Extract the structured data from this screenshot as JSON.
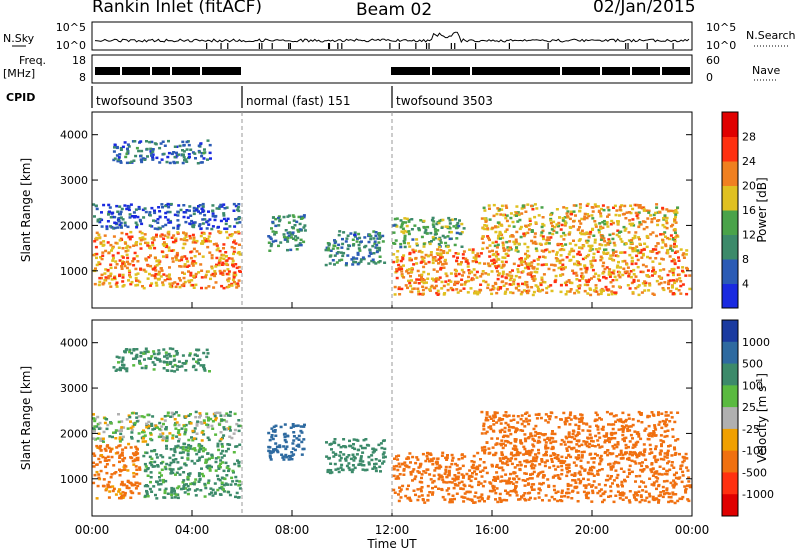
{
  "header": {
    "title": "Rankin Inlet (fitACF)",
    "beam": "Beam 02",
    "date": "02/Jan/2015"
  },
  "noise_panel": {
    "left_label": "N.Sky",
    "right_label": "N.Search",
    "left_ticks": [
      "10^5",
      "10^0"
    ],
    "right_ticks": [
      "10^5",
      "10^0"
    ]
  },
  "freq_panel": {
    "left_label_1": "Freq.",
    "left_label_2": "[MHz]",
    "right_label": "Nave",
    "left_ticks": [
      "18",
      "8"
    ],
    "right_ticks": [
      "60",
      "0"
    ]
  },
  "cpid": {
    "label": "CPID",
    "segments": [
      {
        "name": "twofsound 3503",
        "start": 0,
        "end": 6
      },
      {
        "name": "normal (fast) 151",
        "start": 6,
        "end": 12
      },
      {
        "name": "twofsound 3503",
        "start": 12,
        "end": 24
      }
    ]
  },
  "colors": {
    "power_scale": [
      "#1a2ae0",
      "#2b5bb5",
      "#3c8a6a",
      "#4aa34a",
      "#e0c020",
      "#f08020",
      "#ff3010",
      "#e00000"
    ],
    "velocity_scale": [
      "#1a3aa0",
      "#2e6aa0",
      "#3c8a6a",
      "#5aba40",
      "#b0b0b0",
      "#f0a000",
      "#f07010",
      "#ff3010",
      "#e00000"
    ]
  },
  "chart_data": [
    {
      "type": "heatmap",
      "title": "Power",
      "xlabel": "Time UT",
      "ylabel": "Slant Range [km]",
      "xlim": [
        0,
        24
      ],
      "ylim": [
        180,
        4500
      ],
      "x_ticks": [
        "00:00",
        "04:00",
        "08:00",
        "12:00",
        "16:00",
        "20:00",
        "00:00"
      ],
      "y_ticks": [
        1000,
        2000,
        3000,
        4000
      ],
      "colorbar": {
        "label": "Power [dB]",
        "ticks": [
          4,
          8,
          12,
          16,
          20,
          24,
          28
        ],
        "range": [
          0,
          32
        ]
      },
      "echo_regions": [
        {
          "start": 0.0,
          "end": 6.0,
          "range_min": 600,
          "range_max": 1900,
          "level": 28
        },
        {
          "start": 0.0,
          "end": 6.0,
          "range_min": 1900,
          "range_max": 2500,
          "level": 10
        },
        {
          "start": 0.8,
          "end": 4.8,
          "range_min": 3350,
          "range_max": 3900,
          "level": 12
        },
        {
          "start": 7.0,
          "end": 8.6,
          "range_min": 1400,
          "range_max": 2250,
          "level": 16
        },
        {
          "start": 9.3,
          "end": 11.8,
          "range_min": 1100,
          "range_max": 1900,
          "level": 14
        },
        {
          "start": 12.0,
          "end": 24.0,
          "range_min": 450,
          "range_max": 1500,
          "level": 28
        },
        {
          "start": 12.0,
          "end": 15.0,
          "range_min": 1500,
          "range_max": 2200,
          "level": 18
        },
        {
          "start": 15.5,
          "end": 23.5,
          "range_min": 1400,
          "range_max": 2500,
          "level": 26
        }
      ]
    },
    {
      "type": "heatmap",
      "title": "Velocity",
      "xlabel": "Time UT",
      "ylabel": "Slant Range [km]",
      "xlim": [
        0,
        24
      ],
      "ylim": [
        180,
        4500
      ],
      "x_ticks": [
        "00:00",
        "04:00",
        "08:00",
        "12:00",
        "16:00",
        "20:00",
        "00:00"
      ],
      "y_ticks": [
        1000,
        2000,
        3000,
        4000
      ],
      "colorbar": {
        "label": "Velocity [m s^-1]",
        "ticks": [
          1000,
          500,
          100,
          25,
          -25,
          -100,
          -500,
          -1000
        ]
      },
      "echo_regions": [
        {
          "start": 0.0,
          "end": 2.0,
          "range_min": 550,
          "range_max": 1800,
          "velocity": -200
        },
        {
          "start": 2.0,
          "end": 6.0,
          "range_min": 550,
          "range_max": 1800,
          "velocity": 150
        },
        {
          "start": 0.0,
          "end": 6.0,
          "range_min": 1800,
          "range_max": 2500,
          "velocity": 50
        },
        {
          "start": 0.8,
          "end": 4.8,
          "range_min": 3350,
          "range_max": 3900,
          "velocity": 200
        },
        {
          "start": 7.0,
          "end": 8.6,
          "range_min": 1400,
          "range_max": 2250,
          "velocity": 800
        },
        {
          "start": 9.3,
          "end": 11.8,
          "range_min": 1100,
          "range_max": 1900,
          "velocity": 300
        },
        {
          "start": 12.0,
          "end": 24.0,
          "range_min": 450,
          "range_max": 1600,
          "velocity": -250
        },
        {
          "start": 15.5,
          "end": 23.5,
          "range_min": 1500,
          "range_max": 2500,
          "velocity": -300
        }
      ]
    }
  ]
}
